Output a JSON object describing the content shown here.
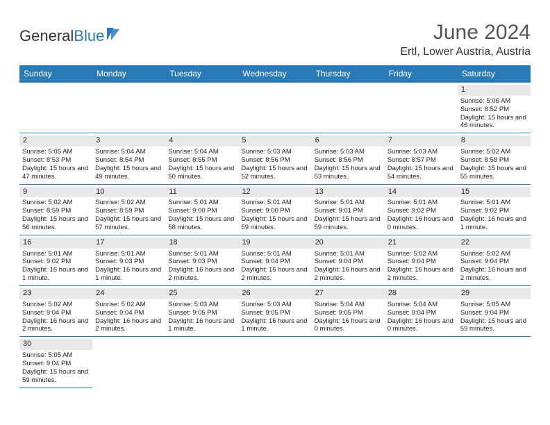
{
  "brand": {
    "text1": "General",
    "text2": "Blue",
    "icon_color": "#2a7ab8"
  },
  "title": "June 2024",
  "location": "Ertl, Lower Austria, Austria",
  "theme": {
    "header_bg": "#2a7ab8",
    "header_fg": "#ffffff",
    "daynum_bg": "#e9e9e9",
    "border": "#2a7ab8"
  },
  "day_labels": [
    "Sunday",
    "Monday",
    "Tuesday",
    "Wednesday",
    "Thursday",
    "Friday",
    "Saturday"
  ],
  "weeks": [
    [
      null,
      null,
      null,
      null,
      null,
      null,
      {
        "n": "1",
        "sr": "Sunrise: 5:06 AM",
        "ss": "Sunset: 8:52 PM",
        "dl": "Daylight: 15 hours and 46 minutes."
      }
    ],
    [
      {
        "n": "2",
        "sr": "Sunrise: 5:05 AM",
        "ss": "Sunset: 8:53 PM",
        "dl": "Daylight: 15 hours and 47 minutes."
      },
      {
        "n": "3",
        "sr": "Sunrise: 5:04 AM",
        "ss": "Sunset: 8:54 PM",
        "dl": "Daylight: 15 hours and 49 minutes."
      },
      {
        "n": "4",
        "sr": "Sunrise: 5:04 AM",
        "ss": "Sunset: 8:55 PM",
        "dl": "Daylight: 15 hours and 50 minutes."
      },
      {
        "n": "5",
        "sr": "Sunrise: 5:03 AM",
        "ss": "Sunset: 8:56 PM",
        "dl": "Daylight: 15 hours and 52 minutes."
      },
      {
        "n": "6",
        "sr": "Sunrise: 5:03 AM",
        "ss": "Sunset: 8:56 PM",
        "dl": "Daylight: 15 hours and 53 minutes."
      },
      {
        "n": "7",
        "sr": "Sunrise: 5:03 AM",
        "ss": "Sunset: 8:57 PM",
        "dl": "Daylight: 15 hours and 54 minutes."
      },
      {
        "n": "8",
        "sr": "Sunrise: 5:02 AM",
        "ss": "Sunset: 8:58 PM",
        "dl": "Daylight: 15 hours and 55 minutes."
      }
    ],
    [
      {
        "n": "9",
        "sr": "Sunrise: 5:02 AM",
        "ss": "Sunset: 8:59 PM",
        "dl": "Daylight: 15 hours and 56 minutes."
      },
      {
        "n": "10",
        "sr": "Sunrise: 5:02 AM",
        "ss": "Sunset: 8:59 PM",
        "dl": "Daylight: 15 hours and 57 minutes."
      },
      {
        "n": "11",
        "sr": "Sunrise: 5:01 AM",
        "ss": "Sunset: 9:00 PM",
        "dl": "Daylight: 15 hours and 58 minutes."
      },
      {
        "n": "12",
        "sr": "Sunrise: 5:01 AM",
        "ss": "Sunset: 9:00 PM",
        "dl": "Daylight: 15 hours and 59 minutes."
      },
      {
        "n": "13",
        "sr": "Sunrise: 5:01 AM",
        "ss": "Sunset: 9:01 PM",
        "dl": "Daylight: 15 hours and 59 minutes."
      },
      {
        "n": "14",
        "sr": "Sunrise: 5:01 AM",
        "ss": "Sunset: 9:02 PM",
        "dl": "Daylight: 16 hours and 0 minutes."
      },
      {
        "n": "15",
        "sr": "Sunrise: 5:01 AM",
        "ss": "Sunset: 9:02 PM",
        "dl": "Daylight: 16 hours and 1 minute."
      }
    ],
    [
      {
        "n": "16",
        "sr": "Sunrise: 5:01 AM",
        "ss": "Sunset: 9:02 PM",
        "dl": "Daylight: 16 hours and 1 minute."
      },
      {
        "n": "17",
        "sr": "Sunrise: 5:01 AM",
        "ss": "Sunset: 9:03 PM",
        "dl": "Daylight: 16 hours and 1 minute."
      },
      {
        "n": "18",
        "sr": "Sunrise: 5:01 AM",
        "ss": "Sunset: 9:03 PM",
        "dl": "Daylight: 16 hours and 2 minutes."
      },
      {
        "n": "19",
        "sr": "Sunrise: 5:01 AM",
        "ss": "Sunset: 9:04 PM",
        "dl": "Daylight: 16 hours and 2 minutes."
      },
      {
        "n": "20",
        "sr": "Sunrise: 5:01 AM",
        "ss": "Sunset: 9:04 PM",
        "dl": "Daylight: 16 hours and 2 minutes."
      },
      {
        "n": "21",
        "sr": "Sunrise: 5:02 AM",
        "ss": "Sunset: 9:04 PM",
        "dl": "Daylight: 16 hours and 2 minutes."
      },
      {
        "n": "22",
        "sr": "Sunrise: 5:02 AM",
        "ss": "Sunset: 9:04 PM",
        "dl": "Daylight: 16 hours and 2 minutes."
      }
    ],
    [
      {
        "n": "23",
        "sr": "Sunrise: 5:02 AM",
        "ss": "Sunset: 9:04 PM",
        "dl": "Daylight: 16 hours and 2 minutes."
      },
      {
        "n": "24",
        "sr": "Sunrise: 5:02 AM",
        "ss": "Sunset: 9:04 PM",
        "dl": "Daylight: 16 hours and 2 minutes."
      },
      {
        "n": "25",
        "sr": "Sunrise: 5:03 AM",
        "ss": "Sunset: 9:05 PM",
        "dl": "Daylight: 16 hours and 1 minute."
      },
      {
        "n": "26",
        "sr": "Sunrise: 5:03 AM",
        "ss": "Sunset: 9:05 PM",
        "dl": "Daylight: 16 hours and 1 minute."
      },
      {
        "n": "27",
        "sr": "Sunrise: 5:04 AM",
        "ss": "Sunset: 9:05 PM",
        "dl": "Daylight: 16 hours and 0 minutes."
      },
      {
        "n": "28",
        "sr": "Sunrise: 5:04 AM",
        "ss": "Sunset: 9:04 PM",
        "dl": "Daylight: 16 hours and 0 minutes."
      },
      {
        "n": "29",
        "sr": "Sunrise: 5:05 AM",
        "ss": "Sunset: 9:04 PM",
        "dl": "Daylight: 15 hours and 59 minutes."
      }
    ],
    [
      {
        "n": "30",
        "sr": "Sunrise: 5:05 AM",
        "ss": "Sunset: 9:04 PM",
        "dl": "Daylight: 15 hours and 59 minutes."
      },
      null,
      null,
      null,
      null,
      null,
      null
    ]
  ]
}
